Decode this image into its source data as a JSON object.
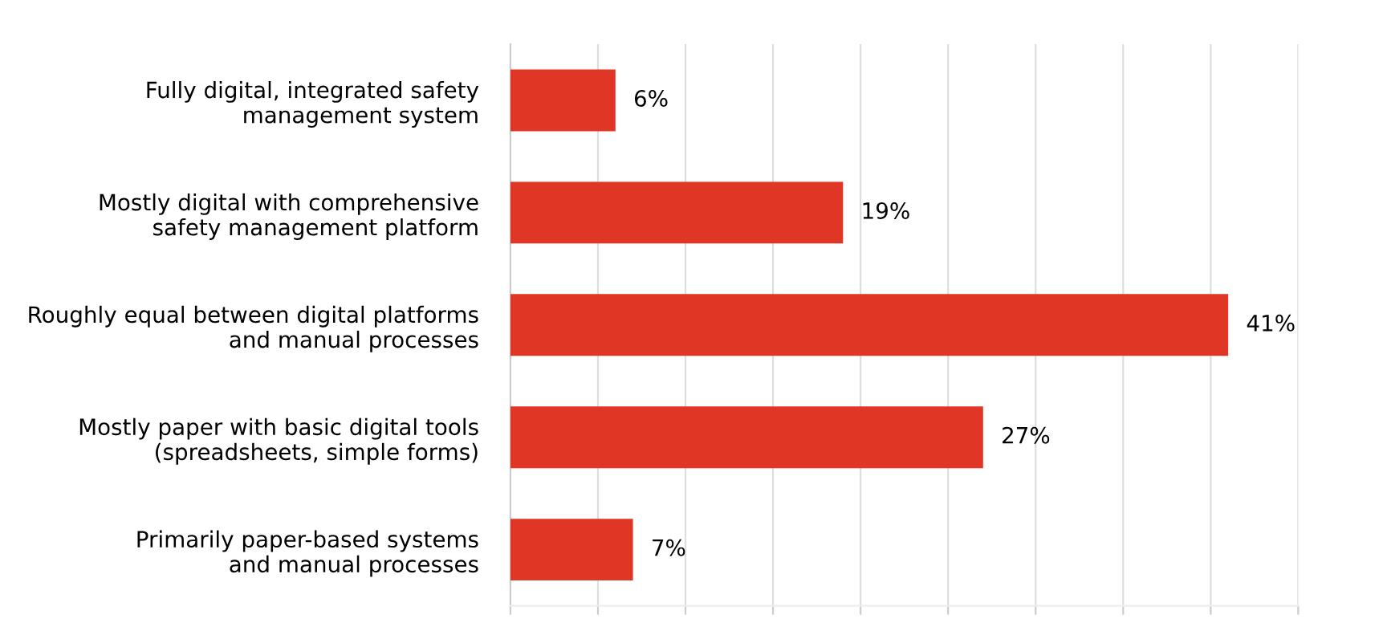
{
  "chart_data": {
    "type": "bar",
    "orientation": "horizontal",
    "categories": [
      "Fully digital, integrated safety\nmanagement system",
      "Mostly digital with comprehensive\nsafety management platform",
      "Roughly equal between digital platforms\nand manual processes",
      "Mostly paper with basic digital tools\n(spreadsheets, simple forms)",
      "Primarily paper-based systems\nand manual processes"
    ],
    "values": [
      6,
      19,
      41,
      27,
      7
    ],
    "value_labels": [
      "6%",
      "19%",
      "41%",
      "27%",
      "7%"
    ],
    "color": "#e03626",
    "xlim": [
      0,
      45
    ],
    "xticks": [
      {
        "value": 0,
        "label": null
      },
      {
        "value": 5,
        "label": null
      },
      {
        "value": 10,
        "label": null
      },
      {
        "value": 15,
        "label": null
      },
      {
        "value": 20,
        "label": null
      },
      {
        "value": 25,
        "label": null
      },
      {
        "value": 30,
        "label": null
      },
      {
        "value": 35,
        "label": null
      },
      {
        "value": 40,
        "label": null
      },
      {
        "value": 45,
        "label": null
      }
    ],
    "tick_labels": "y",
    "grid": "x"
  }
}
